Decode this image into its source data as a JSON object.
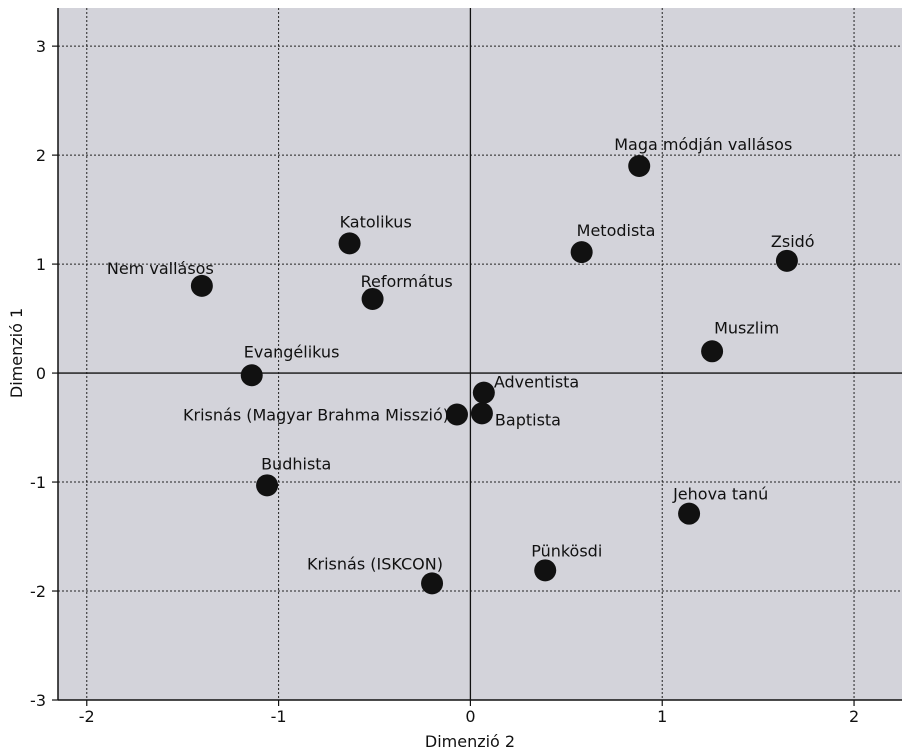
{
  "chart_data": {
    "type": "scatter",
    "xlabel": "Dimenzió 2",
    "ylabel": "Dimenzió 1",
    "xlim": [
      -2.15,
      2.25
    ],
    "ylim": [
      -3,
      3.35
    ],
    "xticks": [
      -2,
      -1,
      0,
      1,
      2
    ],
    "yticks": [
      -3,
      -2,
      -1,
      0,
      1,
      2,
      3
    ],
    "xticklabels": [
      "-2",
      "-1",
      "0",
      "1",
      "2"
    ],
    "yticklabels": [
      "-3",
      "-2",
      "-1",
      "0",
      "1",
      "2",
      "3"
    ],
    "grid": true,
    "colors": {
      "plot_bg": "#d3d3da",
      "point": "#111111"
    },
    "points": [
      {
        "label": "Maga módján vallásos",
        "x": 0.88,
        "y": 1.9
      },
      {
        "label": "Katolikus",
        "x": -0.63,
        "y": 1.19
      },
      {
        "label": "Metodista",
        "x": 0.58,
        "y": 1.11
      },
      {
        "label": "Zsidó",
        "x": 1.65,
        "y": 1.03
      },
      {
        "label": "Nem vallásos",
        "x": -1.4,
        "y": 0.8
      },
      {
        "label": "Református",
        "x": -0.51,
        "y": 0.68
      },
      {
        "label": "Muszlim",
        "x": 1.26,
        "y": 0.2
      },
      {
        "label": "Evangélikus",
        "x": -1.14,
        "y": -0.02
      },
      {
        "label": "Adventista",
        "x": 0.07,
        "y": -0.18
      },
      {
        "label": "Krisnás (Magyar Brahma Misszió)",
        "x": -0.07,
        "y": -0.38
      },
      {
        "label": "Baptista",
        "x": 0.06,
        "y": -0.37
      },
      {
        "label": "Budhista",
        "x": -1.06,
        "y": -1.03
      },
      {
        "label": "Jehova tanú",
        "x": 1.14,
        "y": -1.29
      },
      {
        "label": "Pünkösdi",
        "x": 0.39,
        "y": -1.81
      },
      {
        "label": "Krisnás (ISKCON)",
        "x": -0.2,
        "y": -1.93
      }
    ]
  }
}
